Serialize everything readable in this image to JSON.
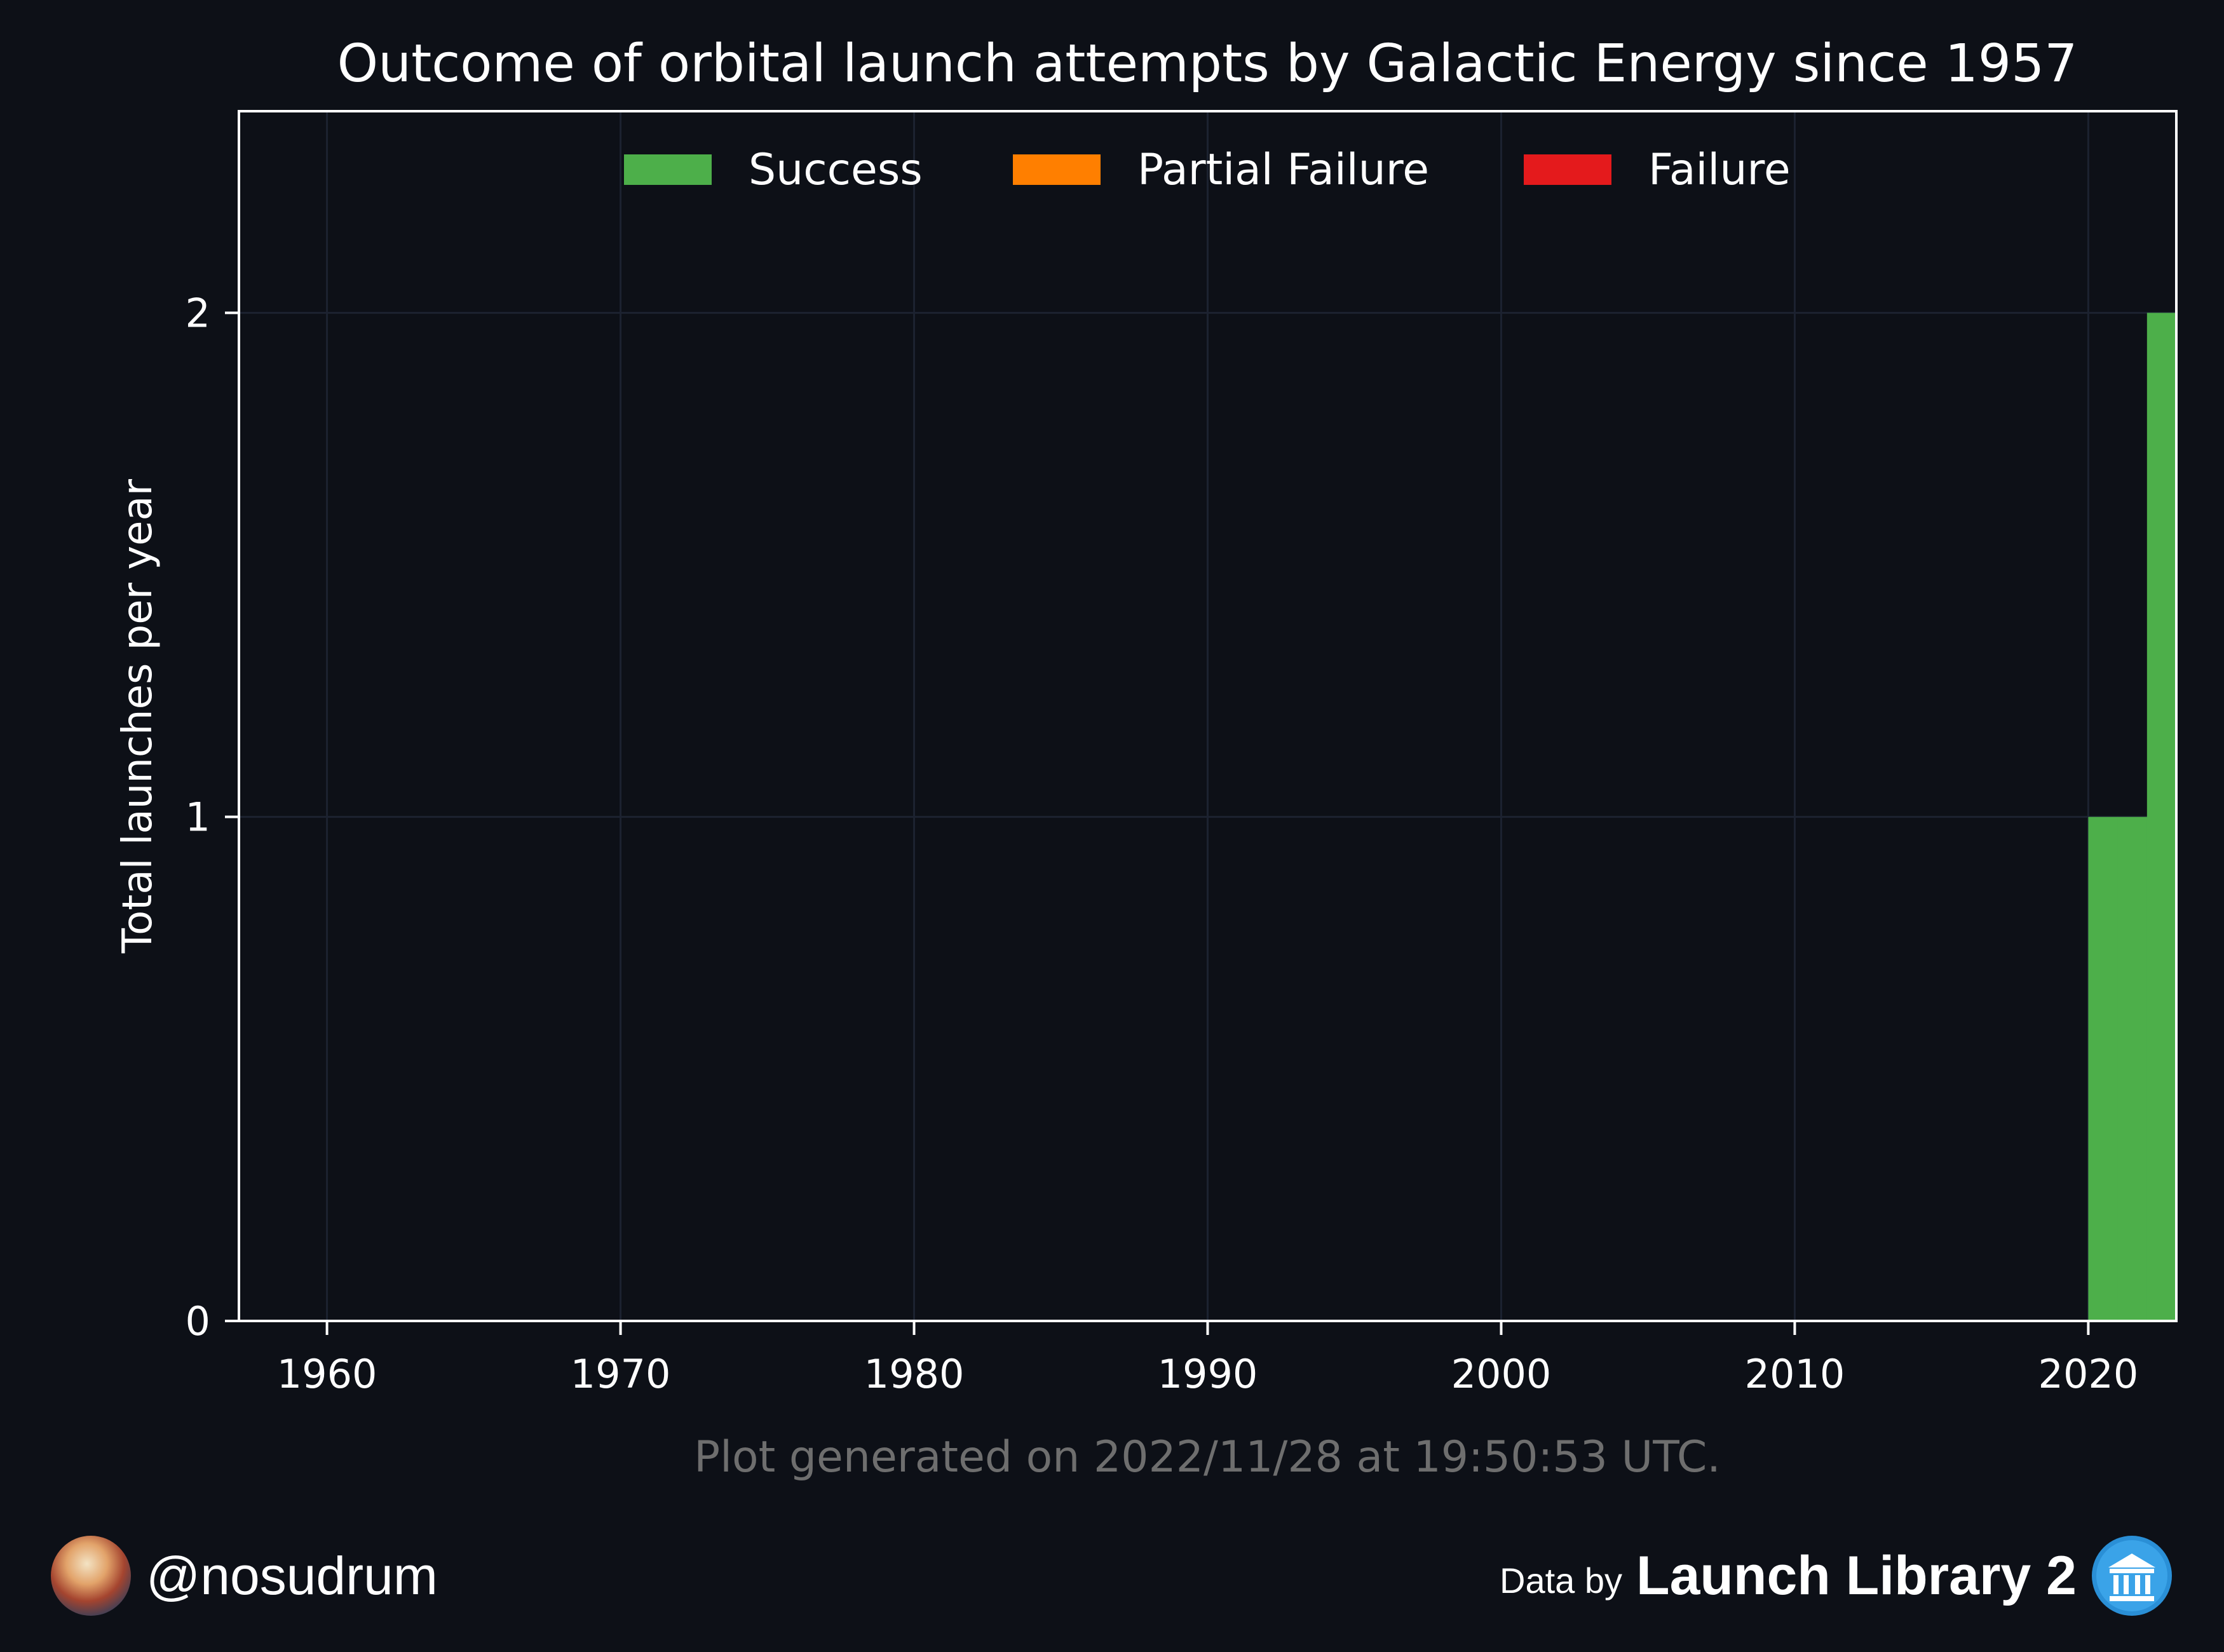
{
  "chart_data": {
    "type": "bar",
    "title": "Outcome of orbital launch attempts by Galactic Energy since 1957",
    "ylabel": "Total launches per year",
    "xlabel": "",
    "xlim": [
      1957,
      2023
    ],
    "ylim": [
      0,
      2.4
    ],
    "xticks": [
      1960,
      1970,
      1980,
      1990,
      2000,
      2010,
      2020
    ],
    "yticks": [
      0,
      1,
      2
    ],
    "grid": true,
    "legend": "top-center",
    "stacked": true,
    "categories": [
      2020,
      2021,
      2022
    ],
    "series": [
      {
        "name": "Success",
        "color": "#4daf4a",
        "values": [
          1,
          1,
          2
        ]
      },
      {
        "name": "Partial Failure",
        "color": "#ff7f00",
        "values": [
          0,
          0,
          0
        ]
      },
      {
        "name": "Failure",
        "color": "#e41a1c",
        "values": [
          0,
          0,
          0
        ]
      }
    ],
    "annotation": "Plot generated on 2022/11/28 at 19:50:53 UTC."
  },
  "footer": {
    "handle": "@nosudrum",
    "data_by": "Data by",
    "source": "Launch Library 2"
  },
  "icons": {
    "avatar": "user-avatar",
    "logo": "launch-library-logo-icon"
  }
}
